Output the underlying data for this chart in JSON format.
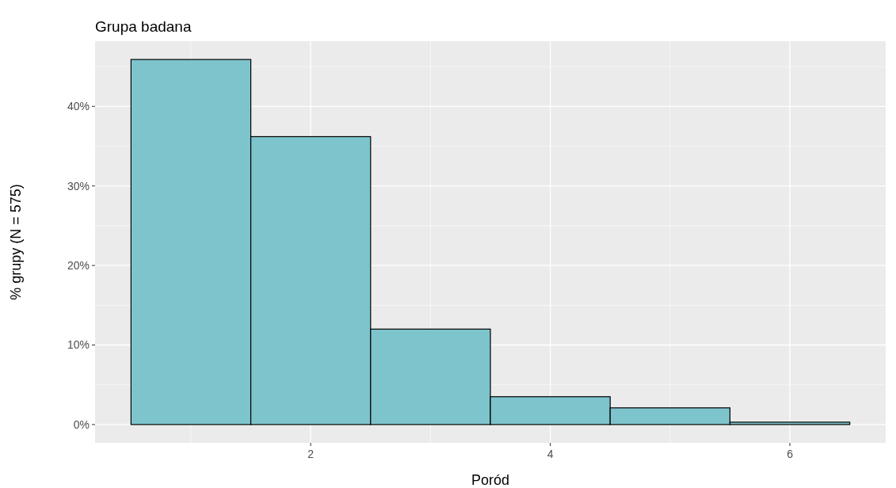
{
  "chart_data": {
    "type": "histogram",
    "title": "Grupa badana",
    "xlabel": "Poród",
    "ylabel": "% grupy (N = 575)",
    "bins": [
      0.5,
      1.5,
      2.5,
      3.5,
      4.5,
      5.5,
      6.5
    ],
    "values": [
      45.9,
      36.2,
      12.0,
      3.5,
      2.1,
      0.3
    ],
    "color": "#7ec4cd",
    "xlim": [
      0.2,
      6.8
    ],
    "xticks": [
      2,
      4,
      6
    ],
    "ylim": [
      -2.3,
      48.2
    ],
    "yticks": [
      {
        "value": 0,
        "label": "0%"
      },
      {
        "value": 10,
        "label": "10%"
      },
      {
        "value": 20,
        "label": "20%"
      },
      {
        "value": 30,
        "label": "30%"
      },
      {
        "value": 40,
        "label": "40%"
      }
    ],
    "grid": true
  }
}
